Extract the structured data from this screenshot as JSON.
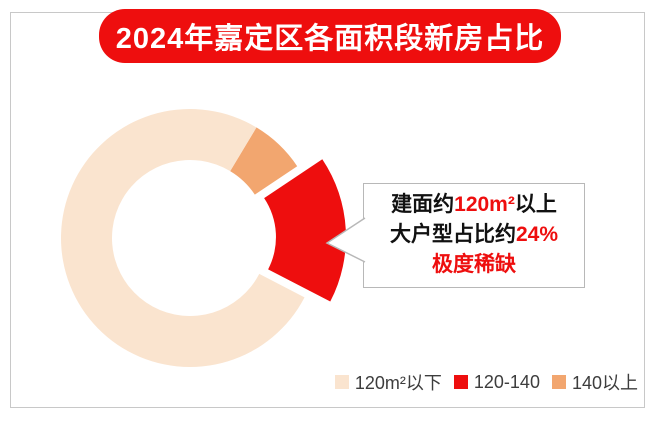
{
  "title": {
    "text": "2024年嘉定区各面积段新房占比",
    "bg_color": "#ee0e0e",
    "text_color": "#ffffff"
  },
  "colors": {
    "red": "#ee0e0e",
    "peach": "#fae4cf",
    "orange": "#f2a66f",
    "frame_border": "#c8c8c8",
    "bubble_border": "#b8b8b8",
    "dark_text": "#111111",
    "legend_text": "#3d3d3d"
  },
  "chart_data": {
    "type": "pie",
    "subtype": "donut",
    "title": "2024年嘉定区各面积段新房占比",
    "start_angle_deg": 31,
    "units": "percent",
    "segments": [
      {
        "label": "140以上",
        "value": 7,
        "color": "#f2a66f",
        "explode": false
      },
      {
        "label": "120-140",
        "value": 17,
        "color": "#ee0e0e",
        "explode": true
      },
      {
        "label": "120m²以下",
        "value": 76,
        "color": "#fae4cf",
        "explode": false
      }
    ],
    "legend_position": "bottom-right",
    "annotation": "建面约120m²以上大户型占比约24% 极度稀缺"
  },
  "legend": {
    "items": [
      {
        "label": "120m²以下",
        "color": "#fae4cf"
      },
      {
        "label": "120-140",
        "color": "#ee0e0e"
      },
      {
        "label": "140以上",
        "color": "#f2a66f"
      }
    ]
  },
  "callout": {
    "line1_black1": "建面约",
    "line1_red": "120m²",
    "line1_black2": "以上",
    "line2_black": "大户型占比约",
    "line2_red": "24%",
    "line3_red": "极度稀缺"
  }
}
